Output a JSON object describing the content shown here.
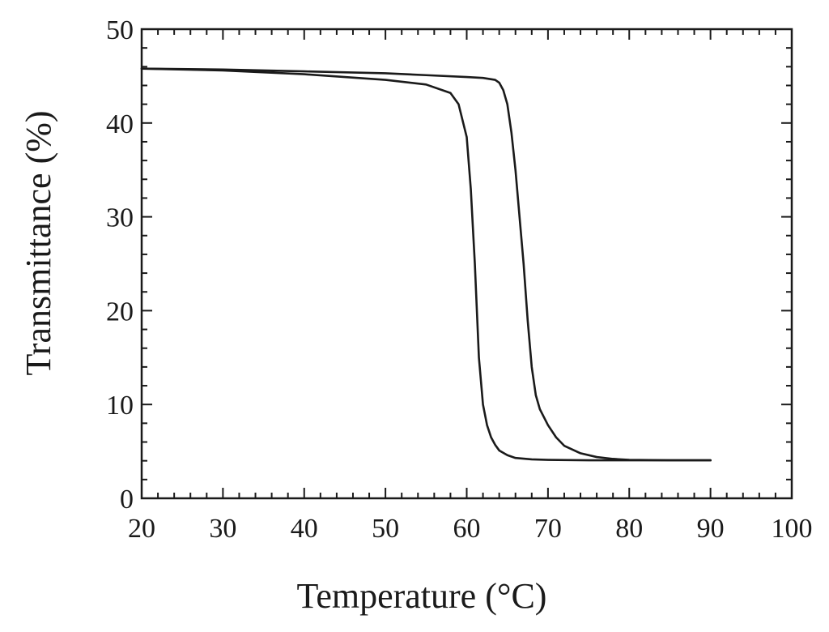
{
  "chart_data": {
    "type": "line",
    "title": "",
    "xlabel": "Temperature (°C)",
    "ylabel": "Transmittance (%)",
    "xlim": [
      20,
      100
    ],
    "ylim": [
      0,
      50
    ],
    "x_ticks": [
      20,
      30,
      40,
      50,
      60,
      70,
      80,
      90,
      100
    ],
    "y_ticks": [
      0,
      10,
      20,
      30,
      40,
      50
    ],
    "x_minor_step": 2,
    "y_minor_step": 2,
    "grid": false,
    "legend": "none",
    "line_color": "#1a1a1a",
    "series": [
      {
        "x": [
          20,
          30,
          40,
          50,
          55,
          58,
          59,
          60,
          60.5,
          61,
          61.5,
          62,
          62.5,
          63,
          63.5,
          64,
          65,
          66,
          68,
          70,
          75,
          80,
          85,
          90
        ],
        "y": [
          45.8,
          45.6,
          45.2,
          44.6,
          44.1,
          43.2,
          42,
          38.5,
          33,
          25,
          15,
          10,
          7.8,
          6.5,
          5.7,
          5.1,
          4.6,
          4.3,
          4.15,
          4.1,
          4.05,
          4.05,
          4.05,
          4.05
        ]
      },
      {
        "x": [
          20,
          30,
          40,
          50,
          55,
          60,
          62,
          63.5,
          64,
          64.5,
          65,
          65.5,
          66,
          66.5,
          67,
          67.5,
          68,
          68.5,
          69,
          70,
          71,
          72,
          74,
          76,
          78,
          80,
          85,
          90
        ],
        "y": [
          45.8,
          45.7,
          45.5,
          45.3,
          45.1,
          44.9,
          44.8,
          44.6,
          44.3,
          43.5,
          42,
          39,
          35,
          30,
          25,
          19,
          14,
          11,
          9.5,
          7.8,
          6.5,
          5.6,
          4.8,
          4.4,
          4.2,
          4.1,
          4.05,
          4.05
        ]
      }
    ]
  }
}
